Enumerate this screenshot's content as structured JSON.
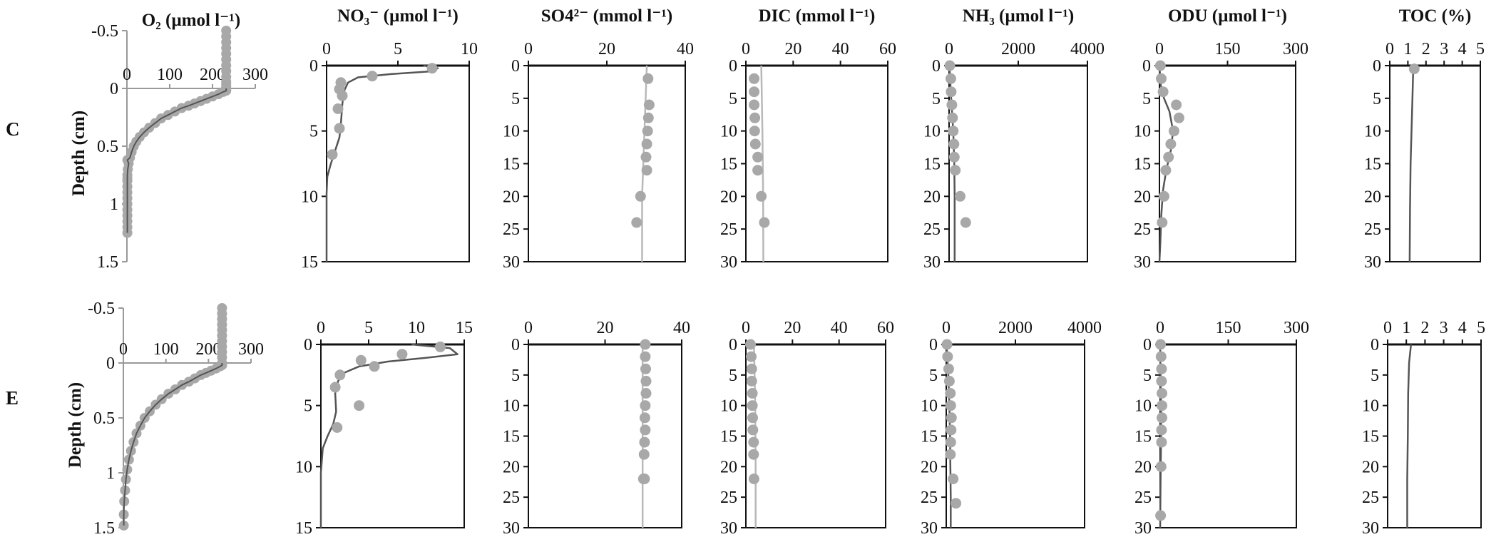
{
  "figure": {
    "row_labels": [
      "C",
      "E"
    ],
    "ylabel": "Depth (cm)",
    "colors": {
      "points": "#a8a8a8",
      "model_dark": "#555555",
      "model_light": "#b8b8b8",
      "frame": "#111111",
      "axis_gray": "#999999"
    }
  },
  "chart_data": [
    {
      "id": "C-O2",
      "type": "scatter",
      "row": "C",
      "title": "O₂ (µmol l⁻¹)",
      "xlim": [
        0,
        300
      ],
      "xticks": [
        0,
        100,
        200,
        300
      ],
      "ylim": [
        -0.5,
        1.5
      ],
      "yticks": [
        -0.5,
        0,
        0.5,
        1,
        1.5
      ],
      "ytick_labels": [
        "-0.5",
        "0",
        "0.5",
        "1",
        "1.5"
      ],
      "ylabel": "Depth (cm)",
      "style": "o2",
      "points": {
        "x": [
          232,
          232,
          232,
          232,
          232,
          232,
          232,
          232,
          232,
          232,
          232,
          232,
          232,
          232,
          232,
          225,
          214,
          200,
          186,
          172,
          158,
          144,
          128,
          112,
          96,
          80,
          66,
          52,
          40,
          30,
          22,
          16,
          11,
          7,
          4,
          2,
          1,
          1,
          1,
          1,
          1,
          1,
          1,
          1,
          1,
          1,
          1,
          1,
          1
        ],
        "y": [
          -0.5,
          -0.45,
          -0.4,
          -0.35,
          -0.3,
          -0.25,
          -0.2,
          -0.15,
          -0.1,
          -0.06,
          -0.04,
          -0.02,
          0,
          0.01,
          0.02,
          0.03,
          0.05,
          0.07,
          0.09,
          0.11,
          0.13,
          0.15,
          0.17,
          0.2,
          0.23,
          0.26,
          0.3,
          0.34,
          0.38,
          0.42,
          0.46,
          0.5,
          0.55,
          0.6,
          0.65,
          0.7,
          0.75,
          0.8,
          0.85,
          0.9,
          0.95,
          1.0,
          1.05,
          1.1,
          1.15,
          1.2,
          1.25,
          0.78,
          0.62
        ]
      },
      "model": {
        "x": [],
        "y": []
      }
    },
    {
      "id": "C-NO3",
      "type": "scatter",
      "row": "C",
      "title": "NO₃⁻ (µmol l⁻¹)",
      "xlim": [
        0,
        10
      ],
      "xticks": [
        0,
        5,
        10
      ],
      "ylim": [
        0,
        15
      ],
      "yticks": [
        0,
        5,
        10,
        15
      ],
      "line": "dark",
      "points": {
        "x": [
          7.4,
          3.2,
          1.0,
          0.9,
          1.1,
          0.8,
          0.9,
          0.4
        ],
        "y": [
          0.2,
          0.8,
          1.3,
          1.8,
          2.3,
          3.3,
          4.8,
          6.8
        ]
      },
      "model": {
        "x": [
          6.8,
          7.8,
          7.2,
          4.5,
          2.2,
          1.5,
          1.2,
          1.1,
          1.0,
          0.9,
          0.6,
          0.3,
          0.05,
          0,
          0
        ],
        "y": [
          0,
          0.2,
          0.45,
          0.65,
          0.9,
          1.3,
          2.0,
          3.0,
          4.5,
          5.5,
          6.5,
          7.5,
          8.5,
          9.8,
          15
        ]
      }
    },
    {
      "id": "C-SO4",
      "type": "scatter",
      "row": "C",
      "title": "SO4²⁻ (mmol l⁻¹)",
      "xlim": [
        0,
        40
      ],
      "xticks": [
        0,
        20,
        40
      ],
      "ylim": [
        0,
        30
      ],
      "yticks": [
        0,
        5,
        10,
        15,
        20,
        25,
        30
      ],
      "line": "light",
      "points": {
        "x": [
          30.5,
          30.8,
          30.6,
          30.4,
          30.2,
          30.0,
          30.2,
          28.6,
          27.6
        ],
        "y": [
          2,
          6,
          8,
          10,
          12,
          14,
          16,
          20,
          24
        ]
      },
      "model": {
        "x": [
          30.2,
          29.6,
          29.0,
          29.0
        ],
        "y": [
          0,
          10,
          20,
          30
        ]
      }
    },
    {
      "id": "C-DIC",
      "type": "scatter",
      "row": "C",
      "title": "DIC (mmol l⁻¹)",
      "xlim": [
        0,
        60
      ],
      "xticks": [
        0,
        20,
        40,
        60
      ],
      "ylim": [
        0,
        30
      ],
      "yticks": [
        0,
        5,
        10,
        15,
        20,
        25,
        30
      ],
      "line": "light",
      "points": {
        "x": [
          3.5,
          3.5,
          3.5,
          3.8,
          3.7,
          4.0,
          5.0,
          5.0,
          6.5,
          7.8
        ],
        "y": [
          2,
          4,
          6,
          8,
          10,
          12,
          14,
          16,
          20,
          24
        ]
      },
      "model": {
        "x": [
          6.5,
          7.0,
          7.3,
          7.4
        ],
        "y": [
          0,
          10,
          20,
          30
        ]
      }
    },
    {
      "id": "C-NH3",
      "type": "scatter",
      "row": "C",
      "title": "NH₃ (µmol l⁻¹)",
      "xlim": [
        0,
        4000
      ],
      "xticks": [
        0,
        2000,
        4000
      ],
      "ylim": [
        0,
        30
      ],
      "yticks": [
        0,
        5,
        10,
        15,
        20,
        25,
        30
      ],
      "line": "dark",
      "points": {
        "x": [
          20,
          50,
          60,
          80,
          100,
          120,
          140,
          150,
          180,
          320,
          480
        ],
        "y": [
          0,
          2,
          4,
          6,
          8,
          10,
          12,
          14,
          16,
          20,
          24
        ]
      },
      "model": {
        "x": [
          10,
          60,
          120,
          150,
          160,
          160
        ],
        "y": [
          0,
          5,
          10,
          15,
          20,
          30
        ]
      }
    },
    {
      "id": "C-ODU",
      "type": "scatter",
      "row": "C",
      "title": "ODU (µmol l⁻¹)",
      "xlim": [
        0,
        300
      ],
      "xticks": [
        0,
        150,
        300
      ],
      "ylim": [
        0,
        30
      ],
      "yticks": [
        0,
        5,
        10,
        15,
        20,
        25,
        30
      ],
      "line": "dark",
      "points": {
        "x": [
          2,
          4,
          8,
          37,
          43,
          32,
          25,
          20,
          14,
          10,
          6
        ],
        "y": [
          0,
          2,
          4,
          6,
          8,
          10,
          12,
          14,
          16,
          20,
          24
        ]
      },
      "model": {
        "x": [
          0,
          3,
          10,
          22,
          30,
          25,
          15,
          8,
          4,
          2,
          0
        ],
        "y": [
          0,
          3,
          5,
          7,
          10,
          13,
          16,
          19,
          23,
          27,
          30
        ]
      }
    },
    {
      "id": "C-TOC",
      "type": "scatter",
      "row": "C",
      "title": "TOC (%)",
      "xlim": [
        0,
        5
      ],
      "xticks": [
        0,
        1,
        2,
        3,
        4,
        5
      ],
      "ylim": [
        0,
        30
      ],
      "yticks": [
        0,
        5,
        10,
        15,
        20,
        25,
        30
      ],
      "line": "dark",
      "points": {
        "x": [
          1.35
        ],
        "y": [
          0.5
        ]
      },
      "model": {
        "x": [
          1.3,
          1.25,
          1.2,
          1.15,
          1.12,
          1.1
        ],
        "y": [
          0,
          5,
          10,
          15,
          22,
          30
        ]
      }
    },
    {
      "id": "E-O2",
      "type": "scatter",
      "row": "E",
      "title": "",
      "xlim": [
        0,
        300
      ],
      "xticks": [
        0,
        100,
        200,
        300
      ],
      "ylim": [
        -0.5,
        1.5
      ],
      "yticks": [
        -0.5,
        0,
        0.5,
        1,
        1.5
      ],
      "ytick_labels": [
        "-0.5",
        "0",
        "0.5",
        "1",
        "1.5"
      ],
      "ylabel": "Depth (cm)",
      "style": "o2",
      "points": {
        "x": [
          232,
          232,
          232,
          232,
          232,
          232,
          232,
          232,
          232,
          232,
          232,
          232,
          232,
          228,
          218,
          206,
          194,
          182,
          168,
          154,
          138,
          122,
          106,
          90,
          76,
          62,
          50,
          40,
          31,
          24,
          18,
          13,
          9,
          6,
          4,
          2,
          1,
          1
        ],
        "y": [
          -0.5,
          -0.45,
          -0.4,
          -0.35,
          -0.3,
          -0.25,
          -0.2,
          -0.15,
          -0.1,
          -0.05,
          0,
          0.01,
          0.02,
          0.03,
          0.05,
          0.07,
          0.09,
          0.11,
          0.14,
          0.17,
          0.2,
          0.24,
          0.28,
          0.33,
          0.38,
          0.44,
          0.5,
          0.57,
          0.64,
          0.72,
          0.8,
          0.88,
          0.97,
          1.06,
          1.16,
          1.26,
          1.38,
          1.48
        ]
      },
      "model": {
        "x": [],
        "y": []
      }
    },
    {
      "id": "E-NO3",
      "type": "scatter",
      "row": "E",
      "title": "",
      "xlim": [
        0,
        15
      ],
      "xticks": [
        0,
        5,
        10,
        15
      ],
      "ylim": [
        0,
        15
      ],
      "yticks": [
        0,
        5,
        10,
        15
      ],
      "line": "dark",
      "points": {
        "x": [
          12.5,
          8.5,
          4.2,
          5.6,
          2.0,
          1.5,
          4.0,
          1.7
        ],
        "y": [
          0.2,
          0.8,
          1.3,
          1.8,
          2.5,
          3.5,
          5.0,
          6.8
        ]
      },
      "model": {
        "x": [
          9.5,
          13.5,
          14.3,
          11.0,
          7.0,
          4.0,
          2.5,
          1.8,
          1.5,
          1.6,
          1.3,
          0.7,
          0.2,
          0,
          0
        ],
        "y": [
          0,
          0.3,
          0.8,
          1.1,
          1.4,
          1.8,
          2.3,
          3.0,
          4.0,
          5.5,
          6.5,
          7.5,
          8.5,
          10.5,
          15
        ]
      }
    },
    {
      "id": "E-SO4",
      "type": "scatter",
      "row": "E",
      "title": "",
      "xlim": [
        0,
        40
      ],
      "xticks": [
        0,
        20,
        40
      ],
      "ylim": [
        0,
        30
      ],
      "yticks": [
        0,
        5,
        10,
        15,
        20,
        25,
        30
      ],
      "line": "light",
      "points": {
        "x": [
          30.5,
          30.5,
          30.6,
          30.7,
          30.7,
          30.5,
          30.4,
          30.5,
          30.3,
          30.2,
          30.0,
          30.3
        ],
        "y": [
          0,
          2,
          4,
          6,
          8,
          10,
          12,
          14,
          16,
          18,
          22,
          22
        ]
      },
      "model": {
        "x": [
          29.8,
          29.8,
          29.8
        ],
        "y": [
          0,
          15,
          30
        ]
      }
    },
    {
      "id": "E-DIC",
      "type": "scatter",
      "row": "E",
      "title": "",
      "xlim": [
        0,
        60
      ],
      "xticks": [
        0,
        20,
        40,
        60
      ],
      "ylim": [
        0,
        30
      ],
      "yticks": [
        0,
        5,
        10,
        15,
        20,
        25,
        30
      ],
      "line": "light",
      "points": {
        "x": [
          2.0,
          2.3,
          2.5,
          2.5,
          2.8,
          2.8,
          2.9,
          3.0,
          3.3,
          3.3,
          3.5
        ],
        "y": [
          0,
          2,
          4,
          6,
          8,
          10,
          12,
          14,
          16,
          18,
          22
        ]
      },
      "model": {
        "x": [
          3.5,
          4.0,
          4.2,
          4.2
        ],
        "y": [
          0,
          10,
          20,
          30
        ]
      }
    },
    {
      "id": "E-NH3",
      "type": "scatter",
      "row": "E",
      "title": "",
      "xlim": [
        0,
        4000
      ],
      "xticks": [
        0,
        2000,
        4000
      ],
      "ylim": [
        0,
        30
      ],
      "yticks": [
        0,
        5,
        10,
        15,
        20,
        25,
        30
      ],
      "line": "dark",
      "points": {
        "x": [
          20,
          40,
          70,
          90,
          120,
          130,
          150,
          140,
          130,
          120,
          200,
          280
        ],
        "y": [
          0,
          2,
          4,
          6,
          8,
          10,
          12,
          14,
          16,
          18,
          22,
          26
        ]
      },
      "model": {
        "x": [
          10,
          60,
          90,
          110,
          120,
          130,
          130
        ],
        "y": [
          0,
          5,
          10,
          15,
          20,
          25,
          30
        ]
      }
    },
    {
      "id": "E-ODU",
      "type": "scatter",
      "row": "E",
      "title": "",
      "xlim": [
        0,
        300
      ],
      "xticks": [
        0,
        150,
        300
      ],
      "ylim": [
        0,
        30
      ],
      "yticks": [
        0,
        5,
        10,
        15,
        20,
        25,
        30
      ],
      "line": "dark",
      "points": {
        "x": [
          1,
          2,
          3,
          3,
          4,
          4,
          4,
          3,
          3,
          2,
          1
        ],
        "y": [
          0,
          2,
          4,
          6,
          8,
          10,
          12,
          14,
          16,
          20,
          28
        ]
      },
      "model": {
        "x": [
          0,
          1,
          2,
          2,
          1,
          0
        ],
        "y": [
          0,
          5,
          10,
          15,
          22,
          30
        ]
      }
    },
    {
      "id": "E-TOC",
      "type": "scatter",
      "row": "E",
      "title": "",
      "xlim": [
        0,
        5
      ],
      "xticks": [
        0,
        1,
        2,
        3,
        4,
        5
      ],
      "ylim": [
        0,
        30
      ],
      "yticks": [
        0,
        5,
        10,
        15,
        20,
        25,
        30
      ],
      "line": "dark",
      "points": {
        "x": [],
        "y": []
      },
      "model": {
        "x": [
          1.25,
          1.15,
          1.1,
          1.08,
          1.05,
          1.05
        ],
        "y": [
          0,
          3,
          8,
          15,
          22,
          30
        ]
      }
    }
  ]
}
